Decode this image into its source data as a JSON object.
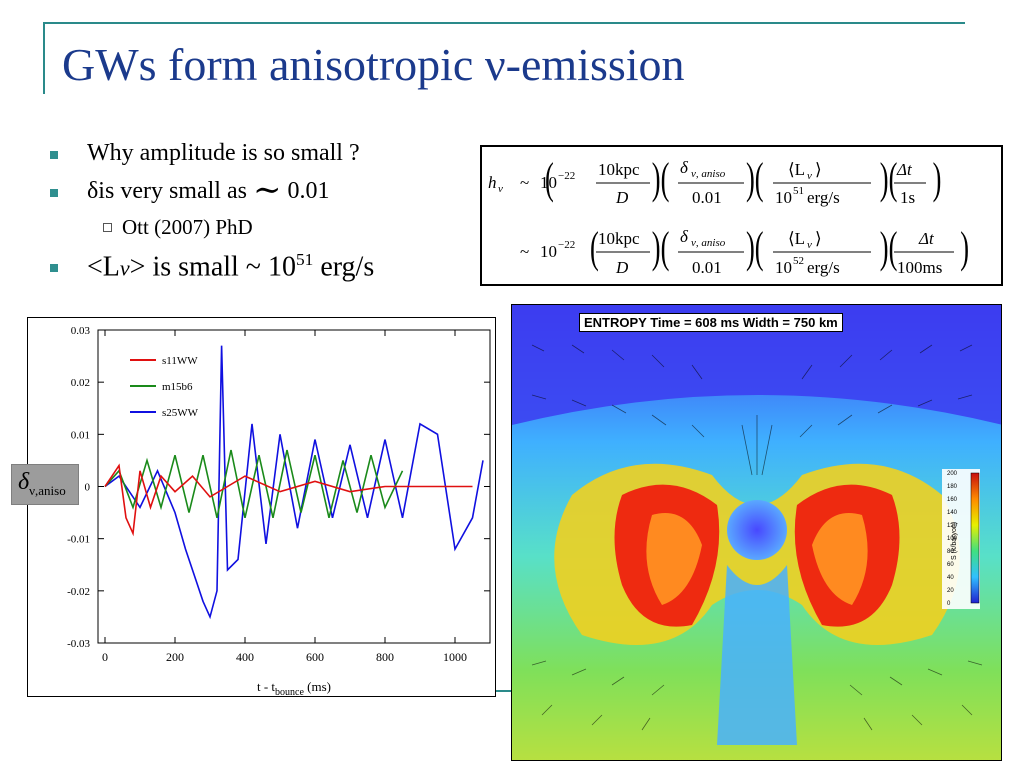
{
  "slide": {
    "title": "GWs form anisotropic ν-emission",
    "bullets": [
      {
        "text": "Why amplitude is so small ?"
      },
      {
        "prefix": "δis very small as ",
        "tilde": "∼",
        "suffix": " 0.01"
      }
    ],
    "sub_bullet": "Ott (2007) PhD",
    "bullet3": {
      "prefix": "<L",
      "nu": "ν",
      "mid": "> is small ~ 10",
      "exp": "51",
      "suffix": " erg/s"
    }
  },
  "equation": {
    "line1": {
      "lhs": "h",
      "lhs_sub": "ν",
      "approx": "~",
      "ten": "10",
      "exp": "−22",
      "f1_num": "10kpc",
      "f1_den": "D",
      "f2_num": "δ",
      "f2_num_sub": "ν, aniso",
      "f2_den": "0.01",
      "f3_num": "⟨L",
      "f3_num_sub": "ν",
      "f3_num_end": "⟩",
      "f3_den": "10",
      "f3_den_exp": "51",
      "f3_den_end": "erg/s",
      "f4_num": "Δt",
      "f4_den": "1s"
    },
    "line2": {
      "approx": "~",
      "ten": "10",
      "exp": "−22",
      "f1_num": "10kpc",
      "f1_den": "D",
      "f2_num": "δ",
      "f2_num_sub": "ν, aniso",
      "f2_den": "0.01",
      "f3_num": "⟨L",
      "f3_num_sub": "ν",
      "f3_num_end": "⟩",
      "f3_den": "10",
      "f3_den_exp": "52",
      "f3_den_end": "erg/s",
      "f4_num": "Δt",
      "f4_den": "100ms"
    }
  },
  "delta_label": {
    "symbol": "δ",
    "subscript": "ν,aniso"
  },
  "chart_data": {
    "type": "line",
    "xlabel": "t - t",
    "xlabel_sub": "bounce",
    "xlabel_unit": " (ms)",
    "ylabel": "",
    "xlim": [
      -20,
      1100
    ],
    "ylim": [
      -0.03,
      0.03
    ],
    "x_ticks": [
      "0",
      "200",
      "400",
      "600",
      "800",
      "1000"
    ],
    "y_ticks": [
      "0.03",
      "0.02",
      "0.01",
      "0",
      "-0.01",
      "-0.02",
      "-0.03"
    ],
    "series": [
      {
        "name": "s11WW",
        "color": "#e01010",
        "x": [
          0,
          20,
          40,
          60,
          80,
          100,
          130,
          160,
          200,
          250,
          300,
          400,
          500,
          600,
          700,
          800,
          900,
          1000,
          1050
        ],
        "y": [
          0,
          0.002,
          0.004,
          -0.006,
          -0.009,
          0.003,
          -0.004,
          0.002,
          -0.001,
          0.002,
          -0.002,
          0.002,
          -0.001,
          0.001,
          -0.001,
          0,
          0,
          0,
          0
        ]
      },
      {
        "name": "m15b6",
        "color": "#1a8a1a",
        "x": [
          0,
          40,
          80,
          120,
          160,
          200,
          240,
          280,
          320,
          360,
          400,
          440,
          480,
          520,
          560,
          600,
          640,
          680,
          720,
          760,
          800,
          850
        ],
        "y": [
          0,
          0.003,
          -0.004,
          0.005,
          -0.004,
          0.006,
          -0.005,
          0.006,
          -0.006,
          0.007,
          -0.006,
          0.006,
          -0.006,
          0.007,
          -0.005,
          0.006,
          -0.006,
          0.005,
          -0.005,
          0.006,
          -0.004,
          0.003
        ]
      },
      {
        "name": "s25WW",
        "color": "#1010e0",
        "x": [
          0,
          40,
          100,
          150,
          200,
          230,
          260,
          280,
          300,
          320,
          333,
          350,
          380,
          420,
          460,
          500,
          550,
          600,
          650,
          700,
          750,
          800,
          850,
          900,
          950,
          1000,
          1050,
          1080
        ],
        "y": [
          0,
          0.002,
          -0.004,
          0.003,
          -0.005,
          -0.012,
          -0.018,
          -0.022,
          -0.025,
          -0.02,
          0.027,
          -0.016,
          -0.014,
          0.012,
          -0.011,
          0.01,
          -0.008,
          0.009,
          -0.006,
          0.008,
          -0.006,
          0.009,
          -0.006,
          0.012,
          0.01,
          -0.012,
          -0.006,
          0.005
        ]
      }
    ]
  },
  "simulation": {
    "header": "ENTROPY   Time = 608 ms   Width = 750 km",
    "colorbar_ticks": [
      "200",
      "180",
      "160",
      "140",
      "120",
      "100",
      "80",
      "60",
      "40",
      "20",
      "0"
    ],
    "colorbar_label": "S (k/baryon)"
  }
}
